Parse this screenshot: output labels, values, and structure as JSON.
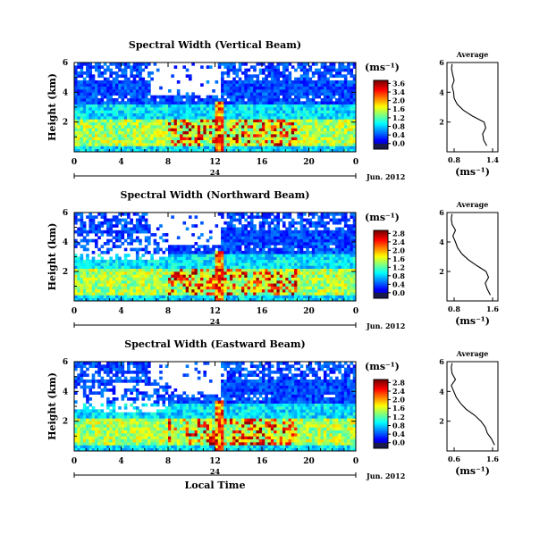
{
  "figure": {
    "xlabel": "Local Time",
    "ylabel": "Height (km)",
    "date_label": "Jun. 2012",
    "date_day": "24",
    "unit_label": "(ms⁻¹)",
    "avg_title": "Average",
    "avg_xlabel": "(ms⁻¹)"
  },
  "chart_data": [
    {
      "type": "heatmap",
      "title": "Spectral Width (Vertical Beam)",
      "xlabel": "Local Time",
      "ylabel": "Height (km)",
      "xlim": [
        0,
        24
      ],
      "ylim": [
        0,
        6
      ],
      "x_ticks": [
        "0",
        "4",
        "8",
        "12",
        "16",
        "20",
        "0"
      ],
      "y_ticks": [
        "6",
        "4",
        "2"
      ],
      "colorbar": {
        "ticks": [
          "3.6",
          "3.4",
          "2.0",
          "1.6",
          "1.2",
          "0.8",
          "0.4",
          "0.0"
        ],
        "range": [
          0,
          3.6
        ]
      },
      "average_profile": {
        "title": "Average",
        "x_ticks": [
          "0.8",
          "1.4"
        ],
        "xlim": [
          0.6,
          1.6
        ],
        "y_ticks": [
          "6",
          "4",
          "2"
        ],
        "ylim": [
          0,
          6
        ],
        "height": [
          0.4,
          0.8,
          1.2,
          1.6,
          2.0,
          2.4,
          2.8,
          3.2,
          3.6,
          4.0,
          4.4,
          4.8,
          5.2,
          5.6,
          5.9
        ],
        "value": [
          1.38,
          1.32,
          1.3,
          1.36,
          1.33,
          1.1,
          0.92,
          0.8,
          0.74,
          0.73,
          0.7,
          0.74,
          0.71,
          0.69,
          0.7
        ]
      }
    },
    {
      "type": "heatmap",
      "title": "Spectral Width (Northward Beam)",
      "xlabel": "Local Time",
      "ylabel": "Height (km)",
      "xlim": [
        0,
        24
      ],
      "ylim": [
        0,
        6
      ],
      "x_ticks": [
        "0",
        "4",
        "8",
        "12",
        "16",
        "20",
        "0"
      ],
      "y_ticks": [
        "6",
        "4",
        "2"
      ],
      "colorbar": {
        "ticks": [
          "2.8",
          "2.4",
          "2.0",
          "1.6",
          "1.2",
          "0.8",
          "0.4",
          "0.0"
        ],
        "range": [
          0,
          2.8
        ]
      },
      "average_profile": {
        "title": "Average",
        "x_ticks": [
          "0.8",
          "1.6"
        ],
        "xlim": [
          0.6,
          1.8
        ],
        "y_ticks": [
          "6",
          "4",
          "2"
        ],
        "ylim": [
          0,
          6
        ],
        "height": [
          0.4,
          0.8,
          1.2,
          1.6,
          2.0,
          2.4,
          2.8,
          3.2,
          3.6,
          4.0,
          4.4,
          4.8,
          5.2,
          5.6,
          5.9
        ],
        "value": [
          1.62,
          1.55,
          1.5,
          1.58,
          1.52,
          1.3,
          1.1,
          0.95,
          0.85,
          0.8,
          0.74,
          0.8,
          0.72,
          0.7,
          0.72
        ]
      }
    },
    {
      "type": "heatmap",
      "title": "Spectral Width (Eastward Beam)",
      "xlabel": "Local Time",
      "ylabel": "Height (km)",
      "xlim": [
        0,
        24
      ],
      "ylim": [
        0,
        6
      ],
      "x_ticks": [
        "0",
        "4",
        "8",
        "12",
        "16",
        "20",
        "0"
      ],
      "y_ticks": [
        "6",
        "4",
        "2"
      ],
      "colorbar": {
        "ticks": [
          "2.8",
          "2.4",
          "2.0",
          "1.6",
          "1.2",
          "0.8",
          "0.4",
          "0.0"
        ],
        "range": [
          0,
          2.8
        ]
      },
      "average_profile": {
        "title": "Average",
        "x_ticks": [
          "0.6",
          "1.6"
        ],
        "xlim": [
          0.5,
          1.7
        ],
        "y_ticks": [
          "6",
          "4",
          "2"
        ],
        "ylim": [
          0,
          6
        ],
        "height": [
          0.4,
          0.8,
          1.2,
          1.6,
          2.0,
          2.4,
          2.8,
          3.2,
          3.6,
          4.0,
          4.4,
          4.8,
          5.2,
          5.6,
          5.9
        ],
        "value": [
          1.62,
          1.55,
          1.45,
          1.4,
          1.3,
          1.15,
          0.95,
          0.82,
          0.72,
          0.66,
          0.6,
          0.7,
          0.62,
          0.6,
          0.62
        ]
      }
    }
  ]
}
